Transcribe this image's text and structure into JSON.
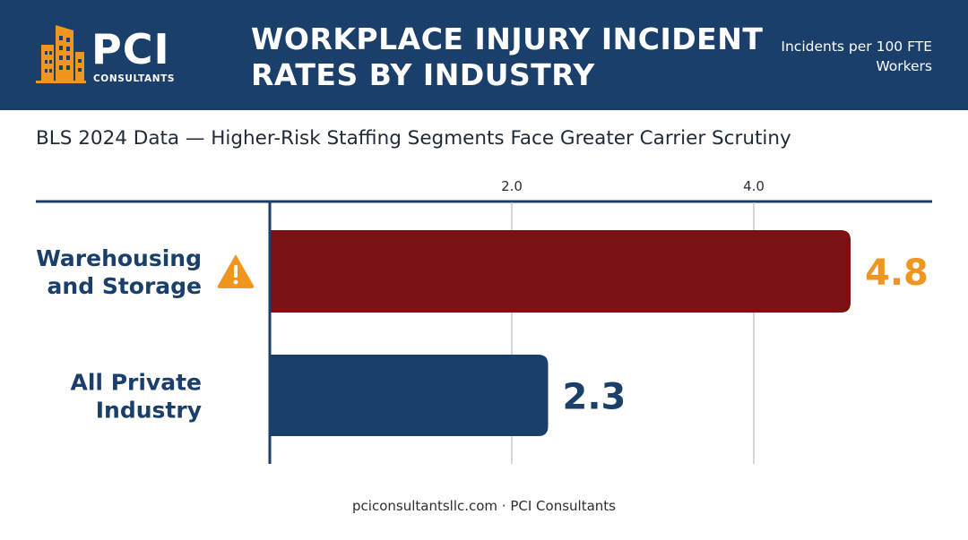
{
  "brand": {
    "name": "PCI",
    "subtitle": "CONSULTANTS"
  },
  "header": {
    "title": "WORKPLACE INJURY INCIDENT RATES BY INDUSTRY",
    "unit_note": "Incidents per 100 FTE Workers"
  },
  "subtitle": "BLS 2024 Data — Higher-Risk Staffing Segments Face Greater Carrier Scrutiny",
  "footer": "pciconsultantsllc.com · PCI Consultants",
  "colors": {
    "header_bg": "#1b3f6b",
    "highlight_bar": "#7a1113",
    "baseline_bar": "#1b3f6b",
    "highlight_value": "#f0961f",
    "baseline_value": "#1b3f6b",
    "warning": "#f0961f",
    "logo_orange": "#f0961f"
  },
  "chart_data": {
    "type": "bar",
    "orientation": "horizontal",
    "categories": [
      "Warehousing and Storage",
      "All Private Industry"
    ],
    "category_lines": [
      [
        "Warehousing",
        "and Storage"
      ],
      [
        "All Private",
        "Industry"
      ]
    ],
    "values": [
      4.8,
      2.3
    ],
    "value_labels": [
      "4.8",
      "2.3"
    ],
    "highlight": [
      true,
      false
    ],
    "warning_icon": [
      true,
      false
    ],
    "xticks": [
      2.0,
      4.0
    ],
    "xtick_labels": [
      "2.0",
      "4.0"
    ],
    "xlim": [
      0,
      5.4
    ],
    "grid": true
  }
}
